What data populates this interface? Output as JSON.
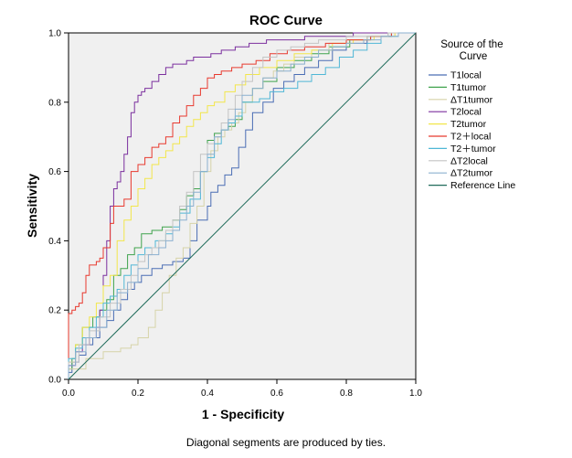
{
  "chart_data": {
    "type": "line",
    "title": "ROC Curve",
    "xlabel": "1 - Specificity",
    "ylabel": "Sensitivity",
    "xlim": [
      0.0,
      1.0
    ],
    "ylim": [
      0.0,
      1.0
    ],
    "x_ticks": [
      "0.0",
      "0.2",
      "0.4",
      "0.6",
      "0.8",
      "1.0"
    ],
    "y_ticks": [
      "0.0",
      "0.2",
      "0.4",
      "0.6",
      "0.8",
      "1.0"
    ],
    "grid": false,
    "legend_title": "Source of the Curve",
    "legend_title_lines": [
      "Source of the",
      "Curve"
    ],
    "legend_position": "right",
    "footnote": "Diagonal segments are produced by ties.",
    "series": [
      {
        "name": "T1local",
        "color": "#4a6db4",
        "x": [
          0,
          0.01,
          0.03,
          0.05,
          0.07,
          0.09,
          0.11,
          0.13,
          0.15,
          0.17,
          0.19,
          0.21,
          0.24,
          0.27,
          0.3,
          0.33,
          0.35,
          0.37,
          0.4,
          0.41,
          0.43,
          0.45,
          0.47,
          0.49,
          0.51,
          0.53,
          0.56,
          0.59,
          0.62,
          0.65,
          0.68,
          0.72,
          0.76,
          0.8,
          0.86,
          0.92,
          1.0
        ],
        "y": [
          0,
          0.02,
          0.05,
          0.07,
          0.1,
          0.12,
          0.15,
          0.17,
          0.2,
          0.23,
          0.26,
          0.28,
          0.3,
          0.32,
          0.33,
          0.34,
          0.35,
          0.4,
          0.46,
          0.5,
          0.54,
          0.56,
          0.59,
          0.61,
          0.67,
          0.72,
          0.77,
          0.8,
          0.84,
          0.86,
          0.88,
          0.9,
          0.92,
          0.95,
          0.97,
          0.99,
          1.0
        ]
      },
      {
        "name": "T1tumor",
        "color": "#3fa34d",
        "x": [
          0,
          0.01,
          0.02,
          0.04,
          0.07,
          0.09,
          0.11,
          0.13,
          0.15,
          0.17,
          0.19,
          0.21,
          0.24,
          0.27,
          0.3,
          0.32,
          0.34,
          0.36,
          0.38,
          0.4,
          0.42,
          0.44,
          0.46,
          0.48,
          0.5,
          0.53,
          0.56,
          0.6,
          0.65,
          0.7,
          0.75,
          0.81,
          0.87,
          0.93,
          1.0
        ],
        "y": [
          0,
          0.03,
          0.06,
          0.1,
          0.15,
          0.18,
          0.2,
          0.23,
          0.3,
          0.32,
          0.36,
          0.38,
          0.42,
          0.43,
          0.44,
          0.46,
          0.49,
          0.53,
          0.55,
          0.6,
          0.69,
          0.71,
          0.72,
          0.73,
          0.75,
          0.8,
          0.84,
          0.86,
          0.9,
          0.92,
          0.94,
          0.96,
          0.98,
          0.99,
          1.0
        ]
      },
      {
        "name": "ΔT1tumor",
        "color": "#d6d3a8",
        "x": [
          0,
          0.05,
          0.1,
          0.15,
          0.18,
          0.2,
          0.23,
          0.25,
          0.27,
          0.29,
          0.31,
          0.33,
          0.35,
          0.37,
          0.39,
          0.41,
          0.43,
          0.45,
          0.47,
          0.49,
          0.51,
          0.53,
          0.56,
          0.59,
          0.62,
          0.65,
          0.7,
          0.75,
          0.8,
          0.86,
          0.92,
          1.0
        ],
        "y": [
          0,
          0.03,
          0.06,
          0.08,
          0.09,
          0.1,
          0.12,
          0.15,
          0.2,
          0.25,
          0.3,
          0.35,
          0.38,
          0.45,
          0.5,
          0.6,
          0.66,
          0.7,
          0.72,
          0.74,
          0.77,
          0.8,
          0.84,
          0.87,
          0.89,
          0.91,
          0.93,
          0.95,
          0.97,
          0.98,
          0.99,
          1.0
        ]
      },
      {
        "name": "T2local",
        "color": "#7b2f9e",
        "x": [
          0,
          0.02,
          0.04,
          0.06,
          0.08,
          0.09,
          0.1,
          0.11,
          0.12,
          0.13,
          0.14,
          0.15,
          0.16,
          0.17,
          0.18,
          0.19,
          0.2,
          0.21,
          0.22,
          0.24,
          0.26,
          0.28,
          0.3,
          0.32,
          0.34,
          0.36,
          0.38,
          0.41,
          0.44,
          0.48,
          0.52,
          0.57,
          0.62,
          0.68,
          0.75,
          0.82,
          0.9,
          1.0
        ],
        "y": [
          0,
          0.04,
          0.08,
          0.1,
          0.12,
          0.15,
          0.2,
          0.3,
          0.4,
          0.5,
          0.55,
          0.57,
          0.6,
          0.65,
          0.7,
          0.77,
          0.8,
          0.82,
          0.83,
          0.84,
          0.86,
          0.88,
          0.9,
          0.91,
          0.91,
          0.92,
          0.93,
          0.93,
          0.94,
          0.95,
          0.96,
          0.97,
          0.98,
          0.98,
          0.99,
          0.99,
          1.0,
          1.0
        ]
      },
      {
        "name": "T2tumor",
        "color": "#f2e64a",
        "x": [
          0,
          0.02,
          0.04,
          0.06,
          0.08,
          0.1,
          0.12,
          0.14,
          0.16,
          0.18,
          0.2,
          0.22,
          0.24,
          0.26,
          0.28,
          0.3,
          0.32,
          0.34,
          0.36,
          0.38,
          0.4,
          0.42,
          0.45,
          0.48,
          0.51,
          0.55,
          0.6,
          0.65,
          0.7,
          0.76,
          0.82,
          0.88,
          0.94,
          1.0
        ],
        "y": [
          0,
          0.05,
          0.1,
          0.15,
          0.18,
          0.22,
          0.27,
          0.3,
          0.4,
          0.46,
          0.5,
          0.55,
          0.58,
          0.62,
          0.64,
          0.66,
          0.68,
          0.7,
          0.73,
          0.75,
          0.77,
          0.79,
          0.8,
          0.83,
          0.85,
          0.88,
          0.9,
          0.92,
          0.94,
          0.95,
          0.97,
          0.98,
          0.99,
          1.0
        ]
      },
      {
        "name": "T2＋local",
        "color": "#e8392e",
        "x": [
          0,
          0.01,
          0.02,
          0.03,
          0.04,
          0.05,
          0.06,
          0.07,
          0.08,
          0.09,
          0.1,
          0.12,
          0.13,
          0.14,
          0.16,
          0.18,
          0.2,
          0.22,
          0.24,
          0.26,
          0.28,
          0.3,
          0.32,
          0.34,
          0.36,
          0.38,
          0.4,
          0.42,
          0.44,
          0.47,
          0.5,
          0.54,
          0.58,
          0.63,
          0.68,
          0.74,
          0.8,
          0.87,
          0.93,
          1.0
        ],
        "y": [
          0,
          0.19,
          0.2,
          0.21,
          0.22,
          0.25,
          0.3,
          0.33,
          0.33,
          0.34,
          0.35,
          0.38,
          0.45,
          0.5,
          0.5,
          0.52,
          0.6,
          0.62,
          0.64,
          0.67,
          0.68,
          0.7,
          0.74,
          0.76,
          0.79,
          0.82,
          0.84,
          0.87,
          0.88,
          0.89,
          0.9,
          0.91,
          0.92,
          0.94,
          0.95,
          0.96,
          0.97,
          0.98,
          0.99,
          1.0
        ]
      },
      {
        "name": "T2＋tumor",
        "color": "#4fb7d6",
        "x": [
          0,
          0.02,
          0.04,
          0.06,
          0.08,
          0.1,
          0.12,
          0.14,
          0.16,
          0.18,
          0.2,
          0.22,
          0.25,
          0.28,
          0.3,
          0.32,
          0.35,
          0.38,
          0.4,
          0.42,
          0.44,
          0.46,
          0.48,
          0.5,
          0.52,
          0.55,
          0.58,
          0.62,
          0.66,
          0.7,
          0.74,
          0.78,
          0.82,
          0.86,
          0.9,
          0.95,
          1.0
        ],
        "y": [
          0,
          0.06,
          0.09,
          0.12,
          0.15,
          0.18,
          0.22,
          0.24,
          0.26,
          0.3,
          0.33,
          0.36,
          0.38,
          0.4,
          0.42,
          0.44,
          0.48,
          0.52,
          0.6,
          0.64,
          0.68,
          0.72,
          0.74,
          0.76,
          0.8,
          0.8,
          0.81,
          0.83,
          0.84,
          0.86,
          0.88,
          0.9,
          0.93,
          0.95,
          0.97,
          0.99,
          1.0
        ]
      },
      {
        "name": "ΔT2local",
        "color": "#c4c4c4",
        "x": [
          0,
          0.03,
          0.06,
          0.09,
          0.12,
          0.15,
          0.18,
          0.2,
          0.22,
          0.24,
          0.26,
          0.28,
          0.3,
          0.32,
          0.34,
          0.36,
          0.38,
          0.4,
          0.42,
          0.44,
          0.46,
          0.48,
          0.5,
          0.53,
          0.56,
          0.6,
          0.64,
          0.68,
          0.72,
          0.76,
          0.8,
          0.86,
          0.92,
          1.0
        ],
        "y": [
          0,
          0.05,
          0.1,
          0.14,
          0.18,
          0.22,
          0.26,
          0.3,
          0.34,
          0.36,
          0.38,
          0.4,
          0.43,
          0.46,
          0.5,
          0.54,
          0.6,
          0.65,
          0.68,
          0.7,
          0.74,
          0.78,
          0.82,
          0.86,
          0.9,
          0.93,
          0.95,
          0.96,
          0.97,
          0.98,
          0.98,
          0.99,
          0.99,
          1.0
        ]
      },
      {
        "name": "ΔT2tumor",
        "color": "#8bb0cf",
        "x": [
          0,
          0.02,
          0.05,
          0.08,
          0.11,
          0.14,
          0.17,
          0.2,
          0.23,
          0.26,
          0.28,
          0.3,
          0.32,
          0.34,
          0.36,
          0.38,
          0.4,
          0.42,
          0.44,
          0.46,
          0.48,
          0.5,
          0.53,
          0.56,
          0.6,
          0.64,
          0.68,
          0.72,
          0.76,
          0.8,
          0.85,
          0.9,
          0.95,
          1.0
        ],
        "y": [
          0,
          0.04,
          0.08,
          0.12,
          0.15,
          0.2,
          0.25,
          0.28,
          0.32,
          0.36,
          0.38,
          0.4,
          0.43,
          0.46,
          0.5,
          0.54,
          0.6,
          0.65,
          0.7,
          0.72,
          0.75,
          0.78,
          0.82,
          0.84,
          0.87,
          0.89,
          0.91,
          0.93,
          0.95,
          0.96,
          0.97,
          0.98,
          0.99,
          1.0
        ]
      },
      {
        "name": "Reference Line",
        "color": "#1f6b5a",
        "x": [
          0,
          1
        ],
        "y": [
          0,
          1
        ]
      }
    ]
  }
}
